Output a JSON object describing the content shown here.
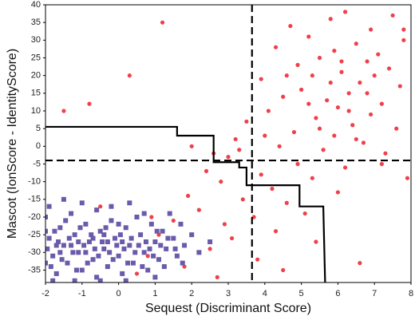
{
  "chart_data": {
    "type": "scatter",
    "x_label": "Sequest (Discriminant Score)",
    "y_label": "Mascot (IonScore - IdentityScore)",
    "xlim": [
      -2,
      8
    ],
    "ylim": [
      -38.5,
      40
    ],
    "xticks": [
      -2,
      -1,
      0,
      1,
      2,
      3,
      4,
      5,
      6,
      7,
      8
    ],
    "yticks": [
      40,
      35,
      30,
      25,
      20,
      15,
      10,
      5,
      0,
      -5,
      -10,
      -15,
      -20,
      -25,
      -30,
      -35
    ],
    "series": [
      {
        "color": "#f0404a",
        "marker": "circle",
        "x": [
          6.2,
          5.8,
          7.5,
          4.7,
          6.9,
          5.2,
          7.8,
          6.5,
          4.3,
          5.9,
          7.1,
          5.5,
          6.8,
          4.9,
          7.4,
          6.1,
          5.3,
          3.9,
          6.6,
          7.7,
          5.0,
          6.3,
          4.5,
          5.7,
          7.2,
          6.0,
          4.1,
          6.9,
          5.4,
          3.5,
          6.4,
          7.6,
          4.8,
          5.9,
          3.2,
          6.7,
          4.4,
          5.6,
          7.3,
          3.0,
          4.9,
          6.2,
          2.4,
          3.9,
          5.3,
          2.8,
          4.2,
          6.0,
          1.9,
          3.4,
          4.6,
          2.2,
          5.1,
          3.7,
          1.5,
          2.9,
          4.3,
          1.1,
          3.1,
          5.4,
          2.5,
          0.8,
          3.8,
          1.8,
          4.5,
          2.7,
          6.6,
          7.9,
          0.5,
          -1.5,
          -0.8,
          1.2,
          0.3,
          2.0,
          7.0,
          6.3,
          5.5,
          6.8,
          5.2,
          6.5,
          7.2,
          4.0,
          4.6,
          5.8,
          6.1,
          7.8,
          3.3,
          2.6,
          0.9,
          -0.5
        ],
        "values": [
          38,
          36,
          37,
          34,
          33,
          31,
          30,
          29,
          28,
          27,
          26,
          25,
          24,
          23,
          22,
          21,
          20,
          19,
          18,
          17,
          16,
          15,
          14,
          13,
          12,
          11,
          10,
          9,
          8,
          7,
          6,
          5,
          4,
          3,
          2,
          1,
          0,
          -1,
          -2,
          -3,
          -5,
          -6,
          -7,
          -8,
          -9,
          -10,
          -12,
          -13,
          -14,
          -15,
          -16,
          -18,
          -19,
          -20,
          -21,
          -22,
          -24,
          -25,
          -26,
          -27,
          -29,
          -31,
          -32,
          -34,
          -35,
          -37,
          -33,
          -9,
          -36,
          10,
          12,
          35,
          20,
          0,
          20,
          10,
          5,
          15,
          12,
          2,
          -5,
          3,
          20,
          18,
          24,
          33,
          -1,
          -2,
          -20,
          -17
        ]
      },
      {
        "color": "#6a5aaa",
        "marker": "square",
        "x": [
          -2,
          -1.9,
          -1.8,
          -1.7,
          -1.6,
          -1.5,
          -1.4,
          -1.3,
          -1.2,
          -1.1,
          -1.0,
          -0.9,
          -0.8,
          -0.7,
          -0.6,
          -0.5,
          -0.4,
          -0.3,
          -0.2,
          -0.1,
          0.0,
          0.1,
          0.2,
          0.3,
          0.4,
          0.5,
          0.6,
          0.7,
          0.8,
          0.9,
          1.0,
          1.1,
          1.2,
          1.3,
          1.4,
          1.5,
          1.6,
          1.7,
          1.8,
          2.0,
          2.2,
          2.5,
          -1.95,
          -1.85,
          -1.75,
          -1.65,
          -1.55,
          -1.45,
          -1.35,
          -1.25,
          -1.15,
          -1.05,
          -0.95,
          -0.85,
          -0.75,
          -0.65,
          -0.55,
          -0.45,
          -0.35,
          -0.25,
          -0.15,
          -0.05,
          0.05,
          0.15,
          0.25,
          0.35,
          0.45,
          0.55,
          0.65,
          0.75,
          0.85,
          0.95,
          1.05,
          1.15,
          1.25,
          1.35,
          1.55,
          1.75,
          -1.9,
          -1.5,
          -1.0,
          -0.6,
          -0.2,
          0.3,
          0.7,
          -1.8,
          -1.2,
          -0.5,
          0.2,
          1.0,
          -2.0,
          -1.6,
          -1.1,
          -0.7,
          -0.3,
          0.1,
          -0.9,
          -1.3,
          -1.7,
          -0.4,
          0.0,
          -2.0
        ],
        "values": [
          -20,
          -26,
          -31,
          -36,
          -23,
          -28,
          -33,
          -19,
          -25,
          -30,
          -35,
          -22,
          -27,
          -32,
          -37,
          -24,
          -29,
          -34,
          -21,
          -26,
          -31,
          -36,
          -23,
          -28,
          -33,
          -20,
          -25,
          -30,
          -35,
          -22,
          -27,
          -32,
          -24,
          -29,
          -19,
          -26,
          -31,
          -22,
          -28,
          -25,
          -30,
          -27,
          -29,
          -34,
          -24,
          -27,
          -32,
          -21,
          -26,
          -30,
          -35,
          -23,
          -28,
          -33,
          -25,
          -29,
          -31,
          -27,
          -23,
          -30,
          -32,
          -28,
          -25,
          -29,
          -33,
          -26,
          -30,
          -28,
          -34,
          -27,
          -29,
          -31,
          -24,
          -28,
          -34,
          -26,
          -29,
          -33,
          -17,
          -15,
          -16,
          -18,
          -17,
          -16,
          -19,
          -38,
          -38,
          -38,
          -38,
          -37,
          -33,
          -30,
          -27,
          -26,
          -27,
          -27,
          -30,
          -28,
          -28,
          -25,
          -22,
          -24
        ]
      }
    ],
    "threshold_lines": {
      "x": 3.65,
      "y": -4
    },
    "step_line": {
      "x": [
        -2,
        1.6,
        1.6,
        2.6,
        2.6,
        3.3,
        3.3,
        3.5,
        3.5,
        4.95,
        4.95,
        5.6,
        5.65
      ],
      "values": [
        5.5,
        5.5,
        3,
        3,
        -4.5,
        -4.5,
        -6,
        -6,
        -11,
        -11,
        -17,
        -17,
        -38.5
      ]
    }
  }
}
